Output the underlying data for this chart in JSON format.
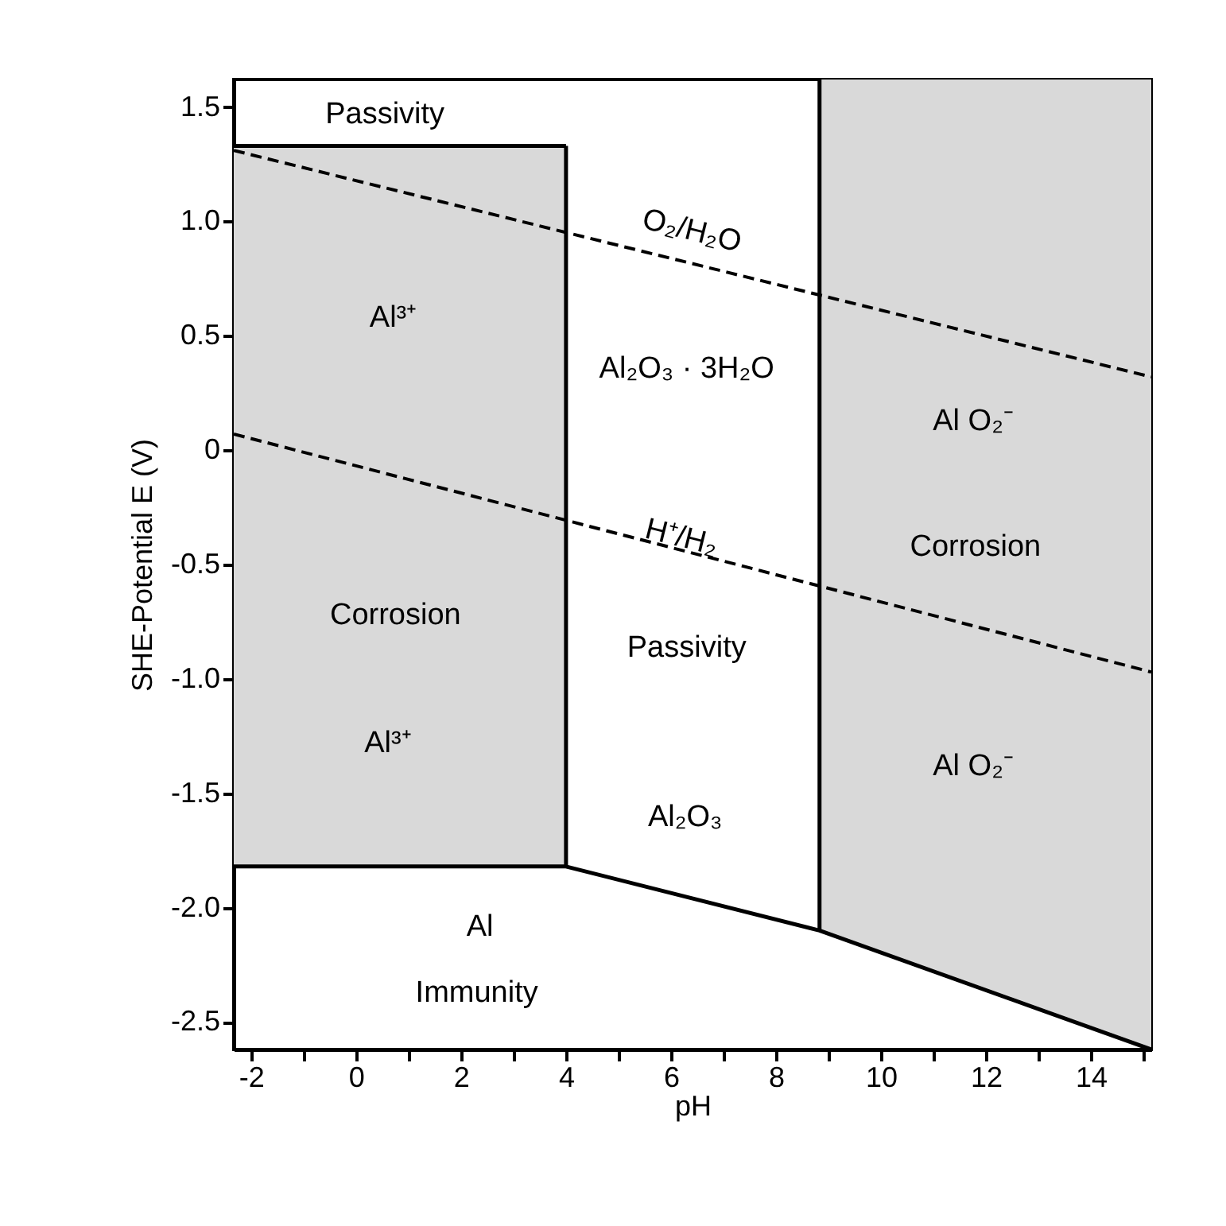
{
  "chart_data": {
    "type": "line",
    "xlabel": "pH",
    "ylabel": "SHE-Potential E (V)",
    "xlim": [
      -2.33,
      15.15
    ],
    "ylim": [
      -2.62,
      1.62
    ],
    "xticks": [
      -2,
      {
        "value": -1,
        "label": null
      },
      0,
      {
        "value": 1,
        "label": null
      },
      2,
      {
        "value": 3,
        "label": null
      },
      4,
      {
        "value": 5,
        "label": null
      },
      6,
      {
        "value": 7,
        "label": null
      },
      8,
      {
        "value": 9,
        "label": null
      },
      10,
      {
        "value": 11,
        "label": null
      },
      12,
      {
        "value": 13,
        "label": null
      },
      14,
      {
        "value": 15,
        "label": null
      }
    ],
    "yticks": [
      {
        "value": 1.5,
        "label": "1.5"
      },
      {
        "value": 1,
        "label": "1.0"
      },
      {
        "value": 0.5,
        "label": "0.5"
      },
      0,
      {
        "value": -0.5,
        "label": "-0.5"
      },
      {
        "value": -1,
        "label": "-1.0"
      },
      {
        "value": -1.5,
        "label": "-1.5"
      },
      {
        "value": -2,
        "label": "-2.0"
      },
      {
        "value": -2.5,
        "label": "-2.5"
      }
    ],
    "grid": false,
    "series": [
      {
        "color": "#000000",
        "line_style": "solid",
        "x": [
          -2.33,
          4
        ],
        "values": [
          1.33,
          1.33
        ],
        "lower": [
          -1.82,
          -1.82
        ],
        "upper": [
          1.33,
          1.33
        ]
      },
      {
        "color": "#000000",
        "line_style": "solid",
        "x": [
          4,
          4
        ],
        "values": [
          1.33,
          -1.82
        ]
      },
      {
        "color": "#000000",
        "line_style": "solid",
        "x": [
          -2.33,
          4,
          8.83,
          15.15
        ],
        "values": [
          -1.82,
          -1.82,
          -2.1,
          -2.62
        ],
        "lower": [
          null,
          null,
          -2.1,
          -2.62
        ],
        "upper": [
          null,
          null,
          1.62,
          1.62
        ]
      },
      {
        "color": "#000000",
        "line_style": "solid",
        "x": [
          8.83,
          8.83
        ],
        "values": [
          1.62,
          -2.1
        ]
      },
      {
        "color": "#000000",
        "line_style": "dashed",
        "x": [
          -2.33,
          15.15
        ],
        "values": [
          1.31,
          0.32
        ]
      },
      {
        "color": "#000000",
        "line_style": "dashed",
        "x": [
          -2.33,
          15.15
        ],
        "values": [
          0.07,
          -0.97
        ]
      }
    ],
    "annotations": [
      "Passivity",
      "Al³⁺",
      "Corrosion",
      "Al³⁺",
      "Al",
      "Immunity",
      "O₂/H₂O",
      "Al₂O₃ · 3H₂O",
      "Al O₂⁻",
      "H⁺/H₂",
      "Corrosion",
      "Passivity",
      "Al₂O₃",
      "Al O₂⁻"
    ]
  }
}
